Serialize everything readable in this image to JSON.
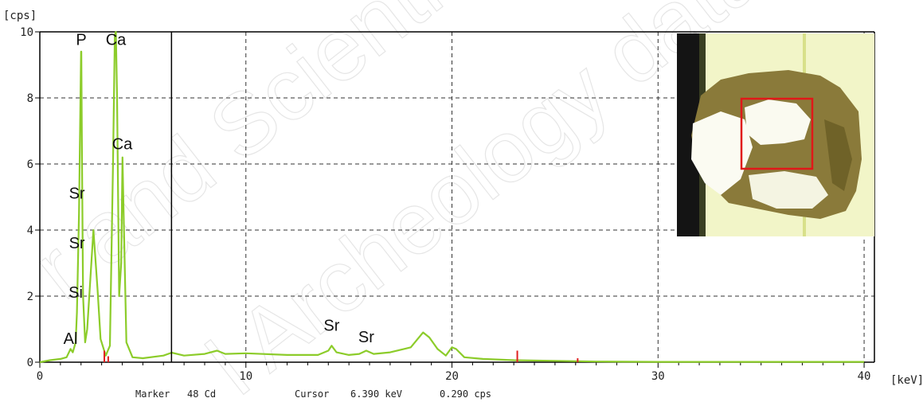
{
  "chart_data": {
    "type": "line",
    "title": "",
    "xlabel": "[keV]",
    "ylabel": "[cps]",
    "xlim": [
      0,
      40.5
    ],
    "ylim": [
      0,
      10
    ],
    "x_ticks": [
      0,
      10,
      20,
      30,
      40
    ],
    "y_ticks": [
      0,
      2,
      4,
      6,
      8,
      10
    ],
    "grid": true,
    "line_color": "#8ccc2a",
    "series": [
      {
        "x": [
          0,
          0.5,
          1.0,
          1.3,
          1.49,
          1.6,
          1.74,
          1.8,
          1.9,
          2.0,
          2.013,
          2.05,
          2.1,
          2.2,
          2.3,
          2.45,
          2.6,
          2.8,
          2.95,
          3.2,
          3.4,
          3.55,
          3.64,
          3.69,
          3.75,
          3.85,
          3.95,
          4.012,
          4.05,
          4.2,
          4.5,
          5.0,
          6.0,
          6.4,
          7.0,
          8.0,
          8.6,
          9.0,
          10.0,
          12.0,
          13.5,
          14.0,
          14.16,
          14.4,
          15.0,
          15.5,
          15.84,
          16.2,
          17.0,
          18.0,
          18.6,
          18.9,
          19.3,
          19.7,
          20.0,
          20.2,
          20.6,
          21.5,
          23.0,
          25.0,
          27.0,
          30.0,
          35.0,
          40.0
        ],
        "y": [
          0,
          0.06,
          0.1,
          0.15,
          0.4,
          0.3,
          0.6,
          1.5,
          4.5,
          9.4,
          9.4,
          6.0,
          2.0,
          0.6,
          1.0,
          2.5,
          4.0,
          2.2,
          0.7,
          0.2,
          0.5,
          6.0,
          9.9,
          10.0,
          8.0,
          2.0,
          3.0,
          6.2,
          5.0,
          0.6,
          0.15,
          0.12,
          0.2,
          0.29,
          0.2,
          0.25,
          0.35,
          0.25,
          0.27,
          0.22,
          0.22,
          0.35,
          0.5,
          0.3,
          0.22,
          0.25,
          0.35,
          0.25,
          0.3,
          0.45,
          0.9,
          0.75,
          0.4,
          0.2,
          0.45,
          0.4,
          0.15,
          0.1,
          0.06,
          0.04,
          0.02,
          0.01,
          0.01,
          0.01
        ]
      }
    ],
    "peak_labels": [
      {
        "text": "P",
        "x": 2.01,
        "y": 9.6
      },
      {
        "text": "Ca",
        "x": 3.69,
        "y": 9.6
      },
      {
        "text": "Ca",
        "x": 4.0,
        "y": 6.45
      },
      {
        "text": "Sr",
        "x": 1.8,
        "y": 4.95
      },
      {
        "text": "Sr",
        "x": 1.8,
        "y": 3.45
      },
      {
        "text": "Si",
        "x": 1.74,
        "y": 1.95
      },
      {
        "text": "Al",
        "x": 1.49,
        "y": 0.55
      },
      {
        "text": "Sr",
        "x": 14.16,
        "y": 0.95
      },
      {
        "text": "Sr",
        "x": 15.84,
        "y": 0.6
      }
    ],
    "markers": [
      {
        "x": 3.13,
        "h": 0.35
      },
      {
        "x": 3.32,
        "h": 0.18
      },
      {
        "x": 23.17,
        "h": 0.35
      },
      {
        "x": 26.1,
        "h": 0.12
      }
    ],
    "marker_color": "#e02020",
    "cursor_x": 6.39
  },
  "status": {
    "marker_label": "Marker",
    "marker_value": "48 Cd",
    "cursor_label": "Cursor",
    "cursor_energy": "6.390 keV",
    "cursor_cps": "0.290 cps"
  },
  "inset": {
    "frame_color": "#e01818",
    "icon": "sample-photo"
  }
}
